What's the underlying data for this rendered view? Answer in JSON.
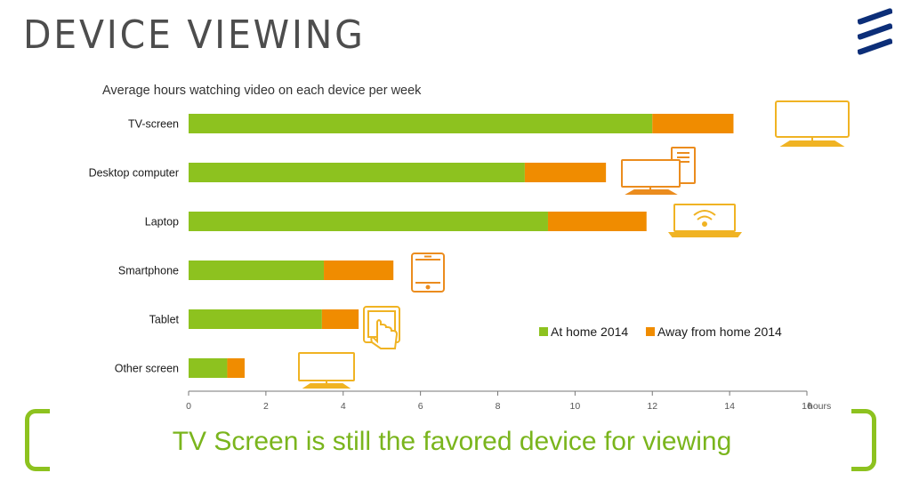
{
  "page": {
    "title": "DEVICE VIEWING",
    "caption": "TV Screen is still the favored device for viewing"
  },
  "colors": {
    "at_home": "#8dc21f",
    "away": "#f08c00",
    "icon_yellow": "#f0b323",
    "icon_orange": "#eb8c1e",
    "logo": "#0c2e78"
  },
  "chart_data": {
    "type": "bar",
    "orientation": "horizontal",
    "stacked": true,
    "title": "Average hours watching video on each device per week",
    "xlabel": "hours",
    "categories": [
      "TV-screen",
      "Desktop computer",
      "Laptop",
      "Smartphone",
      "Tablet",
      "Other screen"
    ],
    "series": [
      {
        "name": "At home 2014",
        "values": [
          12.0,
          8.7,
          9.3,
          3.5,
          3.45,
          1.0
        ]
      },
      {
        "name": "Away from home 2014",
        "values": [
          2.1,
          2.1,
          2.55,
          1.8,
          0.95,
          0.45
        ]
      }
    ],
    "xlim": [
      0,
      16
    ],
    "xticks": [
      "0",
      "2",
      "4",
      "6",
      "8",
      "10",
      "12",
      "14",
      "16"
    ],
    "legend_position": "bottom-right",
    "grid": false,
    "icons": [
      "tv-icon",
      "desktop-computer-icon",
      "laptop-icon",
      "smartphone-icon",
      "tablet-icon",
      "monitor-icon"
    ]
  }
}
